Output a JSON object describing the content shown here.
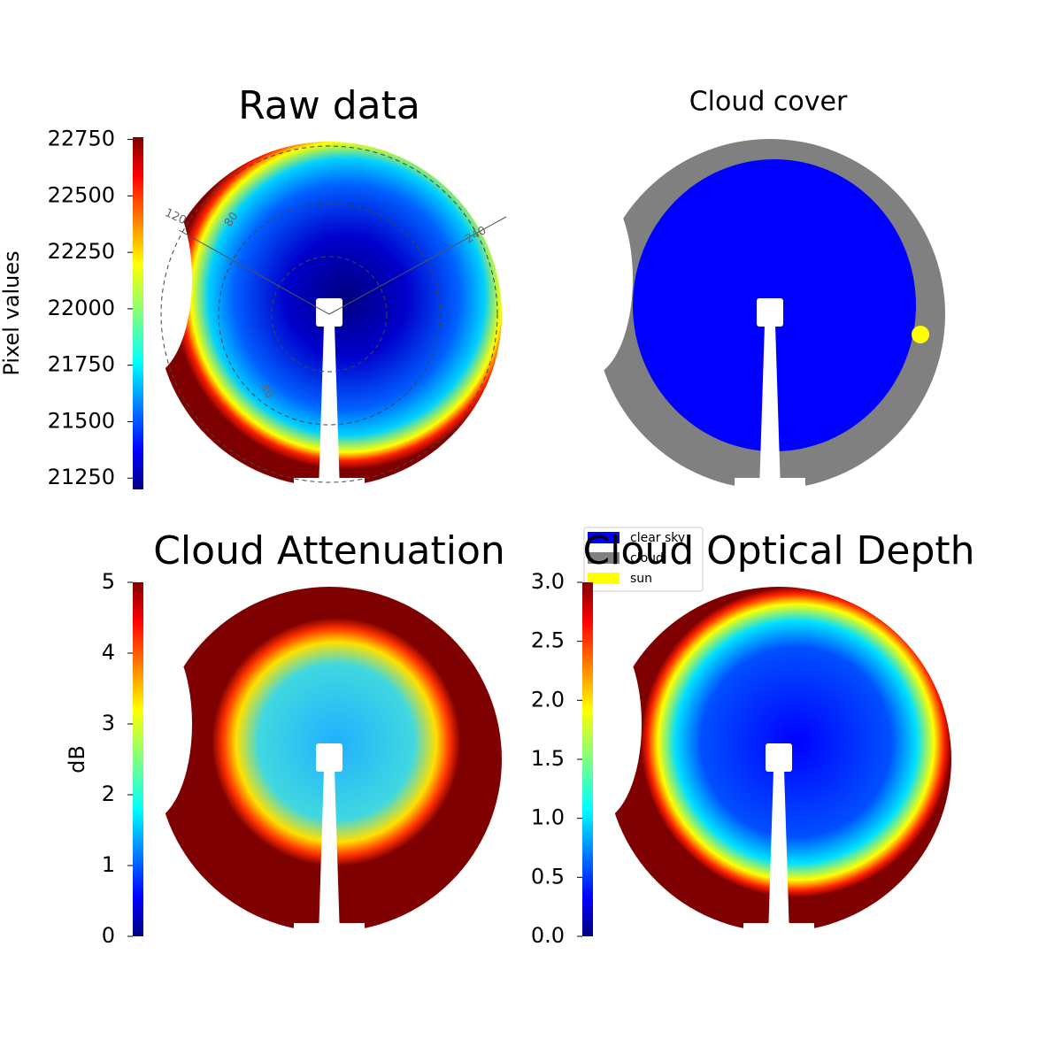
{
  "chart_data": [
    {
      "type": "image",
      "title": "Raw data",
      "ylabel": "Pixel values",
      "ylim": [
        21200,
        22760
      ],
      "yticks": [
        21250,
        21500,
        21750,
        22000,
        22250,
        22500,
        22750
      ],
      "polar_labels": [
        120,
        80,
        240,
        40
      ]
    },
    {
      "type": "categorical-image",
      "title": "Cloud cover",
      "series": [
        {
          "name": "clear sky",
          "color": "#0000ff"
        },
        {
          "name": "cloud",
          "color": "#808080"
        },
        {
          "name": "sun",
          "color": "#ffff00"
        }
      ]
    },
    {
      "type": "image",
      "title": "Cloud Attenuation",
      "ylabel": "dB",
      "ylim": [
        0,
        5
      ],
      "yticks": [
        0,
        1,
        2,
        3,
        4,
        5
      ]
    },
    {
      "type": "image",
      "title": "Cloud Optical Depth",
      "ylim": [
        0,
        3
      ],
      "yticks": [
        {
          "value": 0,
          "label": "0.0"
        },
        0.5,
        {
          "value": 1,
          "label": "1.0"
        },
        1.5,
        {
          "value": 2,
          "label": "2.0"
        },
        2.5,
        {
          "value": 3,
          "label": "3.0"
        }
      ]
    }
  ]
}
